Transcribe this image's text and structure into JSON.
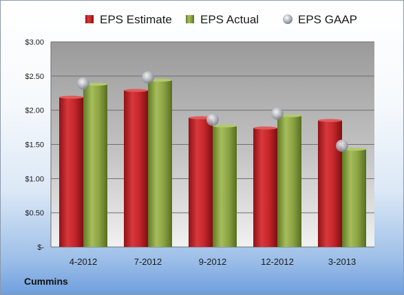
{
  "company": "Cummins",
  "chart_data": {
    "type": "bar",
    "categories": [
      "4-2012",
      "7-2012",
      "9-2012",
      "12-2012",
      "3-2013"
    ],
    "series": [
      {
        "name": "EPS Estimate",
        "kind": "bar",
        "color": "#c0282c",
        "values": [
          2.19,
          2.29,
          1.89,
          1.74,
          1.85
        ]
      },
      {
        "name": "EPS Actual",
        "kind": "bar",
        "color": "#8fa845",
        "values": [
          2.38,
          2.44,
          1.77,
          1.92,
          1.43
        ]
      },
      {
        "name": "EPS GAAP",
        "kind": "marker",
        "color": "#b8bcc4",
        "values": [
          2.39,
          2.48,
          1.86,
          1.95,
          1.48
        ]
      }
    ],
    "ylim": [
      0,
      3
    ],
    "yticks": [
      {
        "value": 0,
        "label": "$-"
      },
      {
        "value": 0.5,
        "label": "$0.50"
      },
      {
        "value": 1,
        "label": "$1.00"
      },
      {
        "value": 1.5,
        "label": "$1.50"
      },
      {
        "value": 2,
        "label": "$2.00"
      },
      {
        "value": 2.5,
        "label": "$2.50"
      },
      {
        "value": 3,
        "label": "$3.00"
      }
    ],
    "grid": true,
    "legend_position": "top"
  }
}
